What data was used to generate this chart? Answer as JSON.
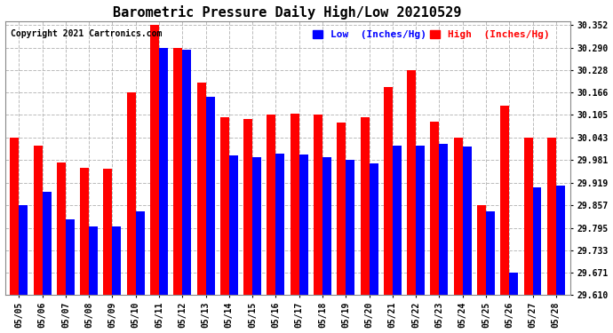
{
  "title": "Barometric Pressure Daily High/Low 20210529",
  "copyright": "Copyright 2021 Cartronics.com",
  "legend_low_label": "Low  (Inches/Hg)",
  "legend_high_label": "High  (Inches/Hg)",
  "dates": [
    "05/05",
    "05/06",
    "05/07",
    "05/08",
    "05/09",
    "05/10",
    "05/11",
    "05/12",
    "05/13",
    "05/14",
    "05/15",
    "05/16",
    "05/17",
    "05/18",
    "05/19",
    "05/20",
    "05/21",
    "05/22",
    "05/23",
    "05/24",
    "05/25",
    "05/26",
    "05/27",
    "05/28"
  ],
  "low_values": [
    29.857,
    29.895,
    29.819,
    29.8,
    29.8,
    29.84,
    30.29,
    30.285,
    30.155,
    29.993,
    29.988,
    29.998,
    29.997,
    29.99,
    29.981,
    29.971,
    30.021,
    30.02,
    30.025,
    30.018,
    29.84,
    29.671,
    29.905,
    29.91
  ],
  "high_values": [
    30.043,
    30.02,
    29.975,
    29.96,
    29.958,
    30.166,
    30.352,
    30.29,
    30.195,
    30.1,
    30.094,
    30.106,
    30.109,
    30.105,
    30.085,
    30.1,
    30.183,
    30.228,
    30.087,
    30.043,
    29.857,
    30.13,
    30.043,
    30.043
  ],
  "ylim_min": 29.61,
  "ylim_max": 30.362,
  "yticks": [
    29.61,
    29.671,
    29.733,
    29.795,
    29.857,
    29.919,
    29.981,
    30.043,
    30.105,
    30.166,
    30.228,
    30.29,
    30.352
  ],
  "bar_color_low": "#0000ff",
  "bar_color_high": "#ff0000",
  "bg_color": "#ffffff",
  "grid_color": "#bbbbbb",
  "title_fontsize": 11,
  "tick_fontsize": 7,
  "legend_fontsize": 8,
  "copyright_fontsize": 7,
  "bar_width": 0.38
}
